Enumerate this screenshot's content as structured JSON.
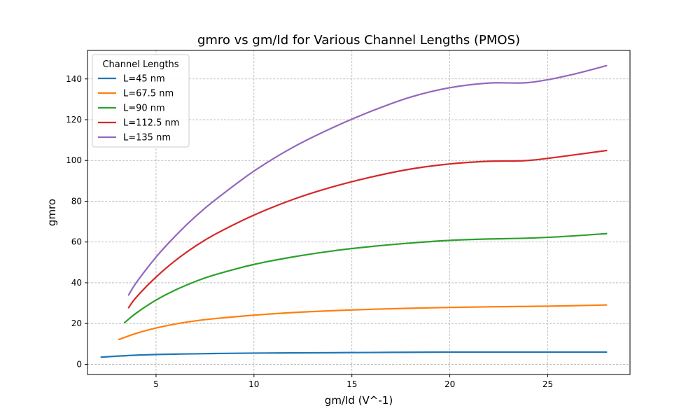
{
  "chart_data": {
    "type": "line",
    "title": "gmro vs gm/Id for Various Channel Lengths (PMOS)",
    "xlabel": "gm/Id (V^-1)",
    "ylabel": "gmro",
    "xlim": [
      1.5,
      29.2
    ],
    "ylim": [
      -5,
      154
    ],
    "xticks": [
      5,
      10,
      15,
      20,
      25
    ],
    "yticks": [
      0,
      20,
      40,
      60,
      80,
      100,
      120,
      140
    ],
    "grid": true,
    "legend": {
      "title": "Channel Lengths",
      "placement": "top-left"
    },
    "series": [
      {
        "name": "L=45 nm",
        "color": "#1f77b4",
        "x": [
          2.2,
          3,
          4,
          5,
          6,
          8,
          10,
          12,
          14,
          16,
          18,
          20,
          22,
          24,
          26,
          28
        ],
        "y": [
          3.5,
          4.0,
          4.5,
          4.8,
          5.0,
          5.3,
          5.5,
          5.6,
          5.7,
          5.8,
          5.9,
          6.0,
          6.0,
          6.0,
          6.0,
          6.0
        ]
      },
      {
        "name": "L=67.5 nm",
        "color": "#ff7f0e",
        "x": [
          3.1,
          4,
          5,
          6,
          7,
          8,
          10,
          12,
          14,
          16,
          18,
          20,
          22,
          24,
          26,
          28
        ],
        "y": [
          12.2,
          15.2,
          17.8,
          19.8,
          21.3,
          22.4,
          24.1,
          25.4,
          26.3,
          27.0,
          27.5,
          27.9,
          28.2,
          28.4,
          28.7,
          29.1
        ]
      },
      {
        "name": "L=90 nm",
        "color": "#2ca02c",
        "x": [
          3.4,
          4,
          5,
          6,
          7,
          8,
          10,
          12,
          14,
          16,
          18,
          20,
          22,
          24,
          26,
          28
        ],
        "y": [
          20.5,
          25.2,
          31.5,
          36.5,
          40.6,
          43.9,
          49.0,
          52.7,
          55.6,
          57.8,
          59.5,
          60.8,
          61.5,
          61.9,
          62.8,
          64.1
        ]
      },
      {
        "name": "L=112.5 nm",
        "color": "#d62728",
        "x": [
          3.6,
          4,
          5,
          6,
          7,
          8,
          10,
          12,
          14,
          16,
          18,
          20,
          22,
          24,
          26,
          28
        ],
        "y": [
          27.8,
          33.0,
          42.8,
          51.0,
          57.9,
          63.7,
          73.2,
          80.9,
          87.0,
          91.9,
          95.8,
          98.3,
          99.6,
          100.0,
          102.3,
          104.9
        ]
      },
      {
        "name": "L=135 nm",
        "color": "#9467bd",
        "x": [
          3.6,
          4,
          5,
          6,
          7,
          8,
          10,
          12,
          14,
          16,
          18,
          20,
          22,
          24,
          26,
          28
        ],
        "y": [
          34.0,
          40.2,
          52.6,
          63.1,
          72.4,
          80.5,
          94.8,
          106.5,
          116.0,
          124.2,
          131.1,
          135.7,
          138.0,
          138.2,
          141.6,
          146.5
        ]
      }
    ]
  }
}
